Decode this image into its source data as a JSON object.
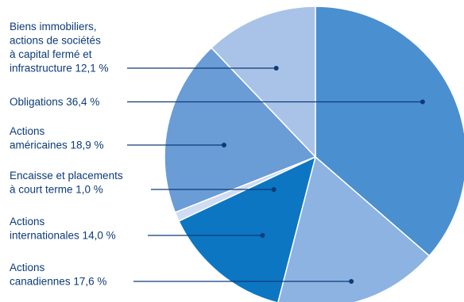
{
  "chart_data": {
    "type": "pie",
    "title": "",
    "slices": [
      {
        "label": [
          "Obligations 36,4 %"
        ],
        "value": 36.4,
        "color": "#4a8fd0"
      },
      {
        "label": [
          "Actions",
          "canadiennes 17,6 %"
        ],
        "value": 17.6,
        "color": "#8cb3e2"
      },
      {
        "label": [
          "Actions",
          "internationales 14,0 %"
        ],
        "value": 14.0,
        "color": "#0c76c2"
      },
      {
        "label": [
          "Encaisse et placements",
          "à court terme 1,0 %"
        ],
        "value": 1.0,
        "color": "#cfdcf2"
      },
      {
        "label": [
          "Actions",
          "américaines 18,9 %"
        ],
        "value": 18.9,
        "color": "#6a9cd6"
      },
      {
        "label": [
          "Biens immobiliers,",
          "actions de sociétés",
          "à capital fermé et",
          "infrastructure 12,1 %"
        ],
        "value": 12.1,
        "color": "#a9c3e8"
      }
    ],
    "label_color": "#0d3b7a",
    "legend": "callout-left"
  }
}
